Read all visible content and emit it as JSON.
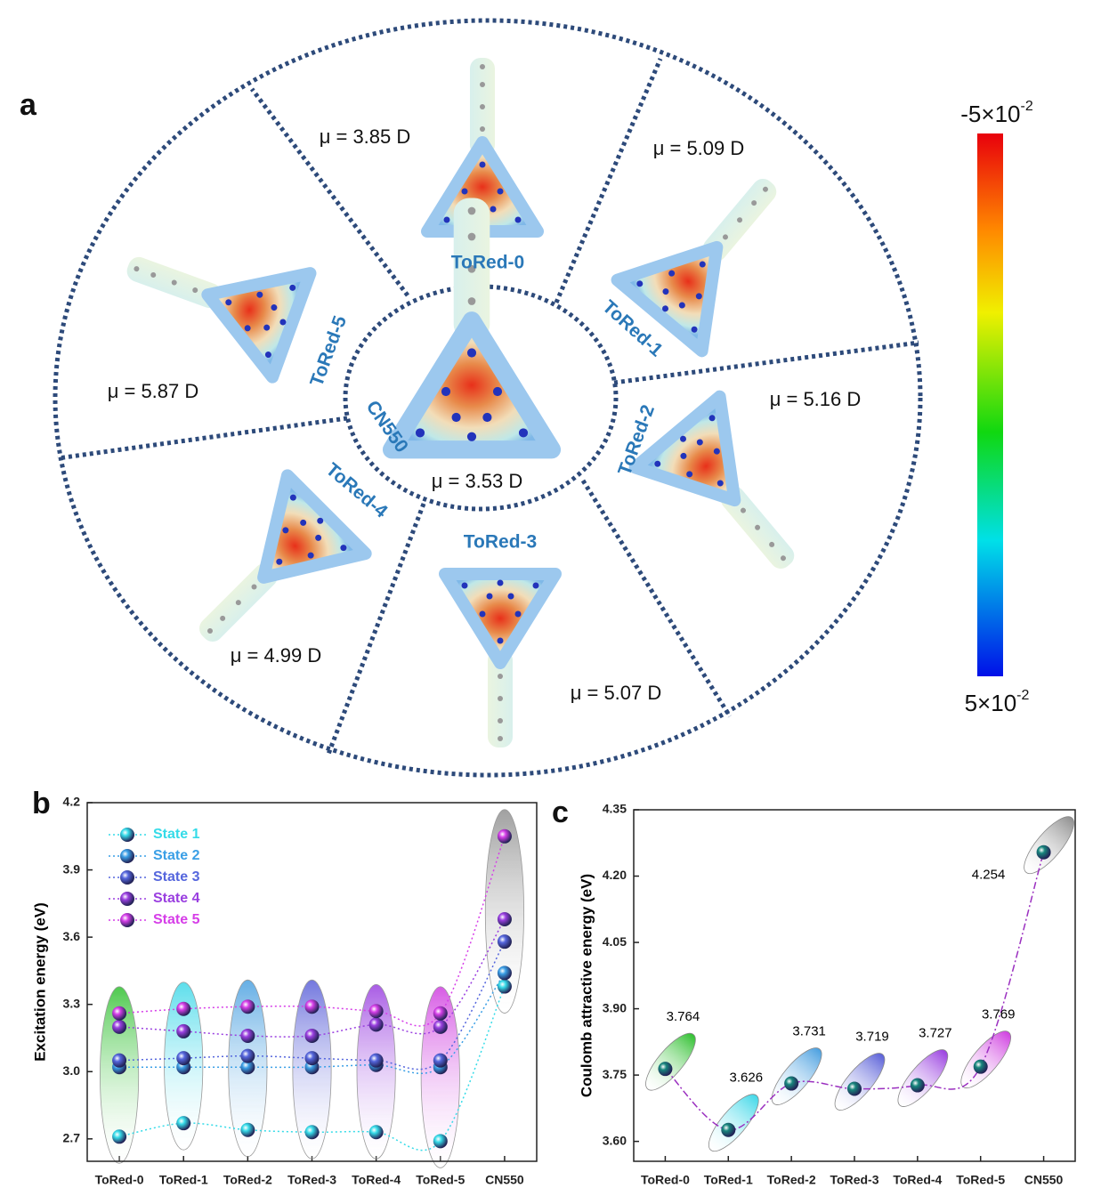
{
  "panel_a": {
    "label": "a",
    "center": {
      "name": "CN550",
      "dipole": "μ = 3.53 D"
    },
    "sectors": [
      {
        "name": "ToRed-0",
        "dipole": "μ = 3.85 D"
      },
      {
        "name": "ToRed-1",
        "dipole": "μ = 5.09 D"
      },
      {
        "name": "ToRed-2",
        "dipole": "μ = 5.16 D"
      },
      {
        "name": "ToRed-3",
        "dipole": "μ = 5.07 D"
      },
      {
        "name": "ToRed-4",
        "dipole": "μ = 4.99 D"
      },
      {
        "name": "ToRed-5",
        "dipole": "μ = 5.87 D"
      }
    ],
    "colorbar": {
      "top": {
        "base": "-5×10",
        "exp": "-2"
      },
      "bottom": {
        "base": "5×10",
        "exp": "-2"
      }
    }
  },
  "chart_data": [
    {
      "panel": "b",
      "type": "line",
      "ylabel": "Excitation energy (eV)",
      "categories": [
        "ToRed-0",
        "ToRed-1",
        "ToRed-2",
        "ToRed-3",
        "ToRed-4",
        "ToRed-5",
        "CN550"
      ],
      "ylim": [
        2.6,
        4.2
      ],
      "yticks": [
        2.7,
        {
          "value": 3,
          "label": "3.0"
        },
        3.3,
        3.6,
        3.9,
        4.2
      ],
      "legend": "upper left",
      "series": [
        {
          "name": "State 1",
          "color": "#35dbe8",
          "values": [
            2.71,
            2.77,
            2.74,
            2.73,
            2.73,
            2.69,
            3.38
          ]
        },
        {
          "name": "State 2",
          "color": "#3a9fe6",
          "values": [
            3.02,
            3.02,
            3.02,
            3.02,
            3.03,
            3.02,
            3.44
          ]
        },
        {
          "name": "State 3",
          "color": "#5566dd",
          "values": [
            3.05,
            3.06,
            3.07,
            3.06,
            3.05,
            3.05,
            3.58
          ]
        },
        {
          "name": "State 4",
          "color": "#9a3fe0",
          "values": [
            3.2,
            3.18,
            3.16,
            3.16,
            3.21,
            3.2,
            3.68
          ]
        },
        {
          "name": "State 5",
          "color": "#d63ee8",
          "values": [
            3.26,
            3.28,
            3.29,
            3.29,
            3.27,
            3.26,
            4.05
          ]
        }
      ]
    },
    {
      "panel": "c",
      "type": "line",
      "ylabel": "Coulomb attractive energy (eV)",
      "categories": [
        "ToRed-0",
        "ToRed-1",
        "ToRed-2",
        "ToRed-3",
        "ToRed-4",
        "ToRed-5",
        "CN550"
      ],
      "ylim": [
        3.555,
        4.35
      ],
      "yticks": [
        {
          "value": 3.6,
          "label": "3.60"
        },
        3.75,
        {
          "value": 3.9,
          "label": "3.90"
        },
        4.05,
        {
          "value": 4.2,
          "label": "4.20"
        },
        4.35
      ],
      "color": "#17857c",
      "line_color": "#9b30c0",
      "values": [
        3.764,
        3.626,
        3.731,
        3.719,
        3.727,
        3.769,
        4.254
      ]
    }
  ]
}
